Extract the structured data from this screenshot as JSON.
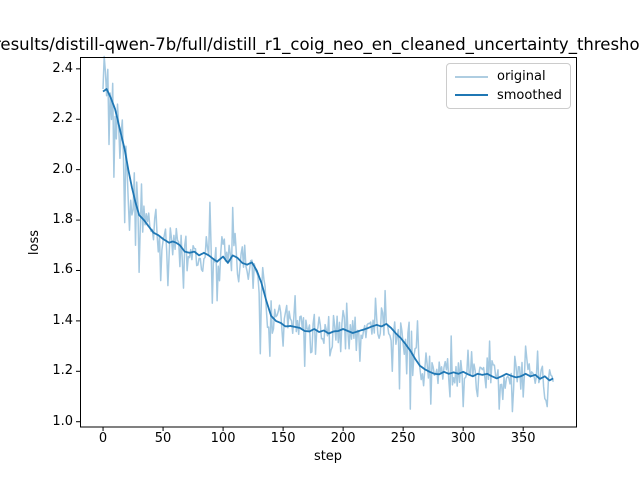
{
  "chart_data": {
    "type": "line",
    "title": "results/distill-qwen-7b/full/distill_r1_coig_neo_en_cleaned_uncertainty_thresho",
    "xlabel": "step",
    "ylabel": "loss",
    "xlim": [
      -19.2,
      394.0
    ],
    "ylim": [
      0.979,
      2.445
    ],
    "xticks": [
      0,
      50,
      100,
      150,
      200,
      250,
      300,
      350
    ],
    "yticks": [
      1.0,
      1.2,
      1.4,
      1.6,
      1.8,
      2.0,
      2.2,
      2.4
    ],
    "grid": false,
    "legend": {
      "position": "upper right",
      "entries": [
        {
          "label": "original",
          "color": "#aecde1"
        },
        {
          "label": "smoothed",
          "color": "#1f77b4"
        }
      ]
    },
    "axis_color": "#000000",
    "x_range": [
      0,
      375
    ],
    "series": [
      {
        "name": "original",
        "color": "#1f77b4",
        "opacity": 0.4,
        "derived_from": "smoothed_plus_noise",
        "noise": {
          "seed": 42,
          "base_amplitude": 0.055,
          "early_amplitude": 0.13,
          "early_until": 35
        },
        "spikes": [
          [
            0,
            2.32
          ],
          [
            2,
            2.39
          ],
          [
            5,
            2.1
          ],
          [
            9,
            1.97
          ],
          [
            12,
            2.26
          ],
          [
            18,
            1.79
          ],
          [
            22,
            1.76
          ],
          [
            27,
            1.7
          ],
          [
            48,
            1.56
          ],
          [
            54,
            1.54
          ],
          [
            67,
            1.53
          ],
          [
            89,
            1.87
          ],
          [
            91,
            1.47
          ],
          [
            95,
            1.48
          ],
          [
            108,
            1.85
          ],
          [
            118,
            1.7
          ],
          [
            131,
            1.27
          ],
          [
            139,
            1.26
          ],
          [
            150,
            1.3
          ],
          [
            160,
            1.5
          ],
          [
            168,
            1.22
          ],
          [
            203,
            1.47
          ],
          [
            214,
            1.24
          ],
          [
            227,
            1.49
          ],
          [
            235,
            1.52
          ],
          [
            241,
            1.2
          ],
          [
            247,
            1.13
          ],
          [
            253,
            1.19
          ],
          [
            256,
            1.05
          ],
          [
            262,
            1.4
          ],
          [
            273,
            1.07
          ],
          [
            290,
            1.34
          ],
          [
            300,
            1.06
          ],
          [
            312,
            1.1
          ],
          [
            322,
            1.32
          ],
          [
            330,
            1.05
          ],
          [
            341,
            1.04
          ],
          [
            352,
            1.3
          ],
          [
            362,
            1.28
          ],
          [
            370,
            1.06
          ]
        ]
      },
      {
        "name": "smoothed",
        "color": "#1f77b4",
        "keypoints": [
          [
            0,
            2.31
          ],
          [
            3,
            2.32
          ],
          [
            6,
            2.29
          ],
          [
            10,
            2.24
          ],
          [
            14,
            2.16
          ],
          [
            18,
            2.08
          ],
          [
            21,
            2.0
          ],
          [
            24,
            1.93
          ],
          [
            27,
            1.87
          ],
          [
            30,
            1.82
          ],
          [
            34,
            1.8
          ],
          [
            38,
            1.775
          ],
          [
            42,
            1.75
          ],
          [
            46,
            1.74
          ],
          [
            50,
            1.725
          ],
          [
            55,
            1.71
          ],
          [
            58,
            1.715
          ],
          [
            61,
            1.71
          ],
          [
            64,
            1.7
          ],
          [
            68,
            1.675
          ],
          [
            72,
            1.67
          ],
          [
            76,
            1.675
          ],
          [
            80,
            1.66
          ],
          [
            84,
            1.67
          ],
          [
            88,
            1.66
          ],
          [
            92,
            1.645
          ],
          [
            95,
            1.635
          ],
          [
            100,
            1.655
          ],
          [
            104,
            1.63
          ],
          [
            108,
            1.66
          ],
          [
            112,
            1.65
          ],
          [
            116,
            1.63
          ],
          [
            120,
            1.623
          ],
          [
            124,
            1.632
          ],
          [
            128,
            1.6
          ],
          [
            132,
            1.55
          ],
          [
            136,
            1.48
          ],
          [
            140,
            1.42
          ],
          [
            144,
            1.4
          ],
          [
            148,
            1.392
          ],
          [
            152,
            1.378
          ],
          [
            156,
            1.38
          ],
          [
            160,
            1.376
          ],
          [
            164,
            1.372
          ],
          [
            168,
            1.36
          ],
          [
            172,
            1.358
          ],
          [
            176,
            1.368
          ],
          [
            180,
            1.356
          ],
          [
            184,
            1.362
          ],
          [
            188,
            1.35
          ],
          [
            192,
            1.358
          ],
          [
            196,
            1.36
          ],
          [
            200,
            1.368
          ],
          [
            204,
            1.36
          ],
          [
            208,
            1.352
          ],
          [
            212,
            1.358
          ],
          [
            216,
            1.364
          ],
          [
            220,
            1.37
          ],
          [
            224,
            1.378
          ],
          [
            228,
            1.384
          ],
          [
            232,
            1.378
          ],
          [
            236,
            1.388
          ],
          [
            240,
            1.372
          ],
          [
            244,
            1.35
          ],
          [
            248,
            1.332
          ],
          [
            252,
            1.308
          ],
          [
            256,
            1.282
          ],
          [
            260,
            1.25
          ],
          [
            264,
            1.222
          ],
          [
            268,
            1.208
          ],
          [
            272,
            1.198
          ],
          [
            276,
            1.19
          ],
          [
            280,
            1.188
          ],
          [
            284,
            1.198
          ],
          [
            288,
            1.19
          ],
          [
            292,
            1.196
          ],
          [
            296,
            1.19
          ],
          [
            300,
            1.198
          ],
          [
            304,
            1.188
          ],
          [
            308,
            1.18
          ],
          [
            312,
            1.19
          ],
          [
            316,
            1.186
          ],
          [
            320,
            1.19
          ],
          [
            324,
            1.18
          ],
          [
            328,
            1.172
          ],
          [
            332,
            1.18
          ],
          [
            336,
            1.19
          ],
          [
            340,
            1.182
          ],
          [
            344,
            1.176
          ],
          [
            348,
            1.18
          ],
          [
            352,
            1.19
          ],
          [
            356,
            1.18
          ],
          [
            360,
            1.186
          ],
          [
            364,
            1.17
          ],
          [
            368,
            1.18
          ],
          [
            372,
            1.164
          ],
          [
            375,
            1.172
          ]
        ]
      }
    ]
  }
}
